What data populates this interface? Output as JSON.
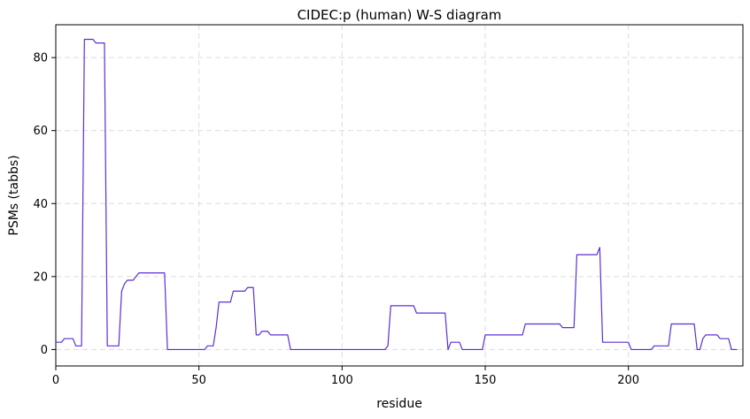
{
  "chart_data": {
    "type": "line",
    "title": "CIDEC:p (human) W-S diagram",
    "xlabel": "residue",
    "ylabel": "PSMs (tabbs)",
    "xlim": [
      0,
      240
    ],
    "ylim": [
      -4.5,
      89
    ],
    "xticks": [
      0,
      50,
      100,
      150,
      200
    ],
    "yticks": [
      0,
      20,
      40,
      60,
      80
    ],
    "grid": true,
    "color": "#5b2fd6",
    "series": [
      {
        "x": [
          0,
          1,
          2,
          3,
          6,
          7,
          9,
          10,
          13,
          14,
          17,
          18,
          22,
          23,
          24,
          25,
          26,
          27,
          28,
          29,
          30,
          37,
          38,
          39,
          40,
          52,
          53,
          55,
          56,
          57,
          61,
          62,
          66,
          67,
          69,
          70,
          71,
          72,
          74,
          75,
          80,
          81,
          82,
          115,
          116,
          117,
          125,
          126,
          136,
          137,
          138,
          141,
          142,
          143,
          149,
          150,
          152,
          162,
          163,
          164,
          176,
          177,
          181,
          182,
          189,
          190,
          191,
          199,
          200,
          201,
          208,
          209,
          214,
          215,
          223,
          224,
          225,
          226,
          227,
          231,
          232,
          235,
          236,
          238
        ],
        "y": [
          2,
          2,
          2,
          3,
          3,
          1,
          1,
          85,
          85,
          84,
          84,
          1,
          1,
          16,
          18,
          19,
          19,
          19,
          20,
          21,
          21,
          21,
          21,
          0,
          0,
          0,
          1,
          1,
          6,
          13,
          13,
          16,
          16,
          17,
          17,
          4,
          4,
          5,
          5,
          4,
          4,
          4,
          0,
          0,
          1,
          12,
          12,
          10,
          10,
          0,
          2,
          2,
          0,
          0,
          0,
          4,
          4,
          4,
          4,
          7,
          7,
          6,
          6,
          26,
          26,
          28,
          2,
          2,
          2,
          0,
          0,
          1,
          1,
          7,
          7,
          0,
          0,
          3,
          4,
          4,
          3,
          3,
          0,
          0
        ]
      }
    ]
  }
}
